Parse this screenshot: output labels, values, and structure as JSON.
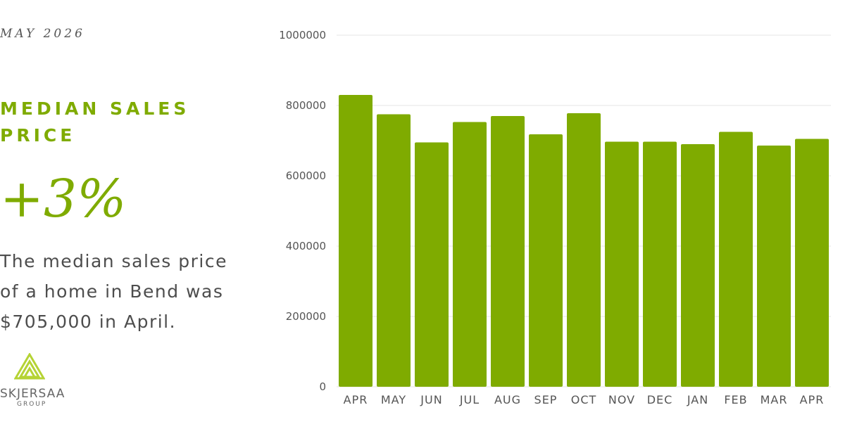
{
  "header": {
    "date": "MAY 2026"
  },
  "metric": {
    "title": "MEDIAN SALES PRICE",
    "change": "+3%",
    "description": "The median sales price of a home in Bend was $705,000 in April."
  },
  "logo": {
    "name": "SKJERSAA",
    "sub": "GROUP"
  },
  "colors": {
    "accent": "#7fab00",
    "bar": "#7fab00",
    "grid": "#e6e6e6",
    "text": "#4d4d4d"
  },
  "chart_data": {
    "type": "bar",
    "categories": [
      "APR",
      "MAY",
      "JUN",
      "JUL",
      "AUG",
      "SEP",
      "OCT",
      "NOV",
      "DEC",
      "JAN",
      "FEB",
      "MAR",
      "APR"
    ],
    "values": [
      830000,
      775000,
      695000,
      753000,
      770000,
      718000,
      778000,
      697000,
      697000,
      690000,
      725000,
      686000,
      705000
    ],
    "ylim": [
      0,
      1000000
    ],
    "yticks": [
      "0",
      "200000",
      "400000",
      "600000",
      "800000",
      "1000000"
    ],
    "grid": true,
    "legend": false
  }
}
